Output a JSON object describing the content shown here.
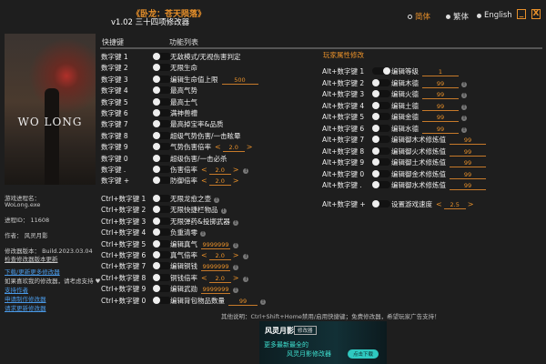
{
  "header": {
    "title": "《卧龙：苍天陨落》",
    "subtitle": "v1.02 三十四项修改器"
  },
  "languages": [
    {
      "label": "简体",
      "selected": true
    },
    {
      "label": "繁体",
      "selected": false
    },
    {
      "label": "English",
      "selected": false
    }
  ],
  "window": {
    "minimize": "_",
    "close": "X"
  },
  "cover": {
    "logo": "WO LONG"
  },
  "columns": {
    "hotkey": "快捷键",
    "features": "功能列表"
  },
  "section_player": "玩家属性修改",
  "sidebar": {
    "process_label": "游戏进程名：",
    "process": "WoLong.exe",
    "pid": "进程ID：  11608",
    "author": "作者：  风灵月影",
    "version": "修改器版本：  Build.2023.03.04",
    "check_update": "检查修改器版本更新",
    "download_more": "下载/更新更多修改器",
    "support_text": "如果喜欢我的修改器，请考虑支持 ♥",
    "support_author": "支持作者",
    "request_make": "申请制作修改器",
    "request_update": "请求更新修改器"
  },
  "left_options": [
    {
      "key": "数字键 1",
      "label": "无敌模式/无视伤害判定"
    },
    {
      "key": "数字键 2",
      "label": "无限生命"
    },
    {
      "key": "数字键 3",
      "label": "编辑生命值上限",
      "input": "500"
    },
    {
      "key": "数字键 4",
      "label": "最高气势"
    },
    {
      "key": "数字键 5",
      "label": "最高士气"
    },
    {
      "key": "数字键 6",
      "label": "满神兽槽"
    },
    {
      "key": "数字键 7",
      "label": "最高掉宝率&品质"
    },
    {
      "key": "数字键 8",
      "label": "超级气势伤害/一击眩晕"
    },
    {
      "key": "数字键 9",
      "label": "气势伤害倍率",
      "stepper": "2.0"
    },
    {
      "key": "数字键 0",
      "label": "超级伤害/一击必杀"
    },
    {
      "key": "数字键 .",
      "label": "伤害倍率",
      "stepper": "2.0",
      "info": true
    },
    {
      "key": "数字键 +",
      "label": "防御倍率",
      "stepper": "2.0"
    }
  ],
  "ctrl_options": [
    {
      "key": "Ctrl+数字键 1",
      "label": "无限龙愈之壶",
      "info": true
    },
    {
      "key": "Ctrl+数字键 2",
      "label": "无限快捷栏物品",
      "info": true
    },
    {
      "key": "Ctrl+数字键 3",
      "label": "无限弹药&投掷武器",
      "info": true
    },
    {
      "key": "Ctrl+数字键 4",
      "label": "负重清零",
      "info": true
    },
    {
      "key": "Ctrl+数字键 5",
      "label": "编辑真气",
      "input": "9999999",
      "info": true
    },
    {
      "key": "Ctrl+数字键 6",
      "label": "真气倍率",
      "stepper": "2.0",
      "info": true
    },
    {
      "key": "Ctrl+数字键 7",
      "label": "编辑铜钱",
      "input": "9999999",
      "info": true
    },
    {
      "key": "Ctrl+数字键 8",
      "label": "铜钱倍率",
      "stepper": "2.0",
      "info": true
    },
    {
      "key": "Ctrl+数字键 9",
      "label": "编辑武勋",
      "input": "9999999",
      "info": true
    },
    {
      "key": "Ctrl+数字键 0",
      "label": "编辑背包物品数量",
      "input": "99",
      "info": true
    }
  ],
  "alt_options": [
    {
      "key": "Alt+数字键 1",
      "label": "编辑等级",
      "input": "1",
      "on": true
    },
    {
      "key": "Alt+数字键 2",
      "label": "编辑木德",
      "input": "99",
      "info": true
    },
    {
      "key": "Alt+数字键 3",
      "label": "编辑火德",
      "input": "99",
      "info": true
    },
    {
      "key": "Alt+数字键 4",
      "label": "编辑土德",
      "input": "99",
      "info": true
    },
    {
      "key": "Alt+数字键 5",
      "label": "编辑金德",
      "input": "99",
      "info": true
    },
    {
      "key": "Alt+数字键 6",
      "label": "编辑水德",
      "input": "99",
      "info": true
    },
    {
      "key": "Alt+数字键 7",
      "label": "编辑御木术修炼值",
      "input": "99"
    },
    {
      "key": "Alt+数字键 8",
      "label": "编辑御火术修炼值",
      "input": "99"
    },
    {
      "key": "Alt+数字键 9",
      "label": "编辑御土术修炼值",
      "input": "99"
    },
    {
      "key": "Alt+数字键 0",
      "label": "编辑御金术修炼值",
      "input": "99"
    },
    {
      "key": "Alt+数字键 .",
      "label": "编辑御水术修炼值",
      "input": "99"
    },
    {
      "key": "Alt+数字键 +",
      "label": "设置游戏速度",
      "stepper": "2.5"
    }
  ],
  "footer": {
    "note": "其他说明：Ctrl+Shift+Home禁用/启用快捷键；免费修改器，希望玩家广告支持！"
  },
  "banner": {
    "brand": "风灵月影",
    "tag": "修改器",
    "line1": "更多最新最全的",
    "line2": "风灵月影修改器",
    "button": "点击下载"
  },
  "colors": {
    "accent": "#e8902a",
    "background": "#1e1e1e",
    "link": "#4a9ae8"
  }
}
